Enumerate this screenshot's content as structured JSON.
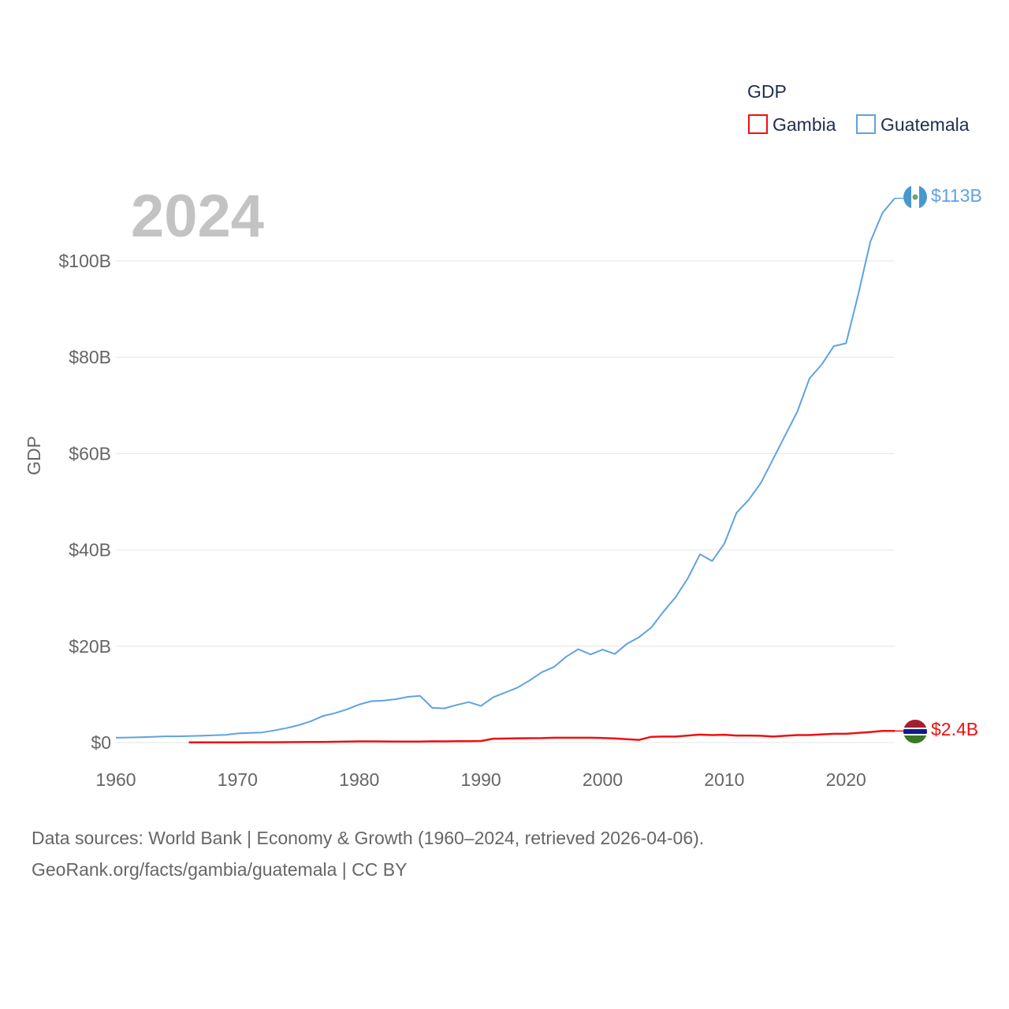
{
  "chart_data": {
    "type": "line",
    "legend_title": "GDP",
    "ylabel": "GDP",
    "year_overlay": "2024",
    "ylim": [
      0,
      113
    ],
    "xlim": [
      1960,
      2024
    ],
    "x_ticks": [
      1960,
      1970,
      1980,
      1990,
      2000,
      2010,
      2020
    ],
    "y_ticks": [
      {
        "value": 0,
        "label": "$0"
      },
      {
        "value": 20,
        "label": "$20B"
      },
      {
        "value": 40,
        "label": "$40B"
      },
      {
        "value": 60,
        "label": "$60B"
      },
      {
        "value": 80,
        "label": "$80B"
      },
      {
        "value": 100,
        "label": "$100B"
      }
    ],
    "series": [
      {
        "name": "Gambia",
        "color": "#ee1111",
        "end_label": "$2.4B",
        "flag": "gambia-flag-icon",
        "x": [
          1966,
          1967,
          1968,
          1969,
          1970,
          1971,
          1972,
          1973,
          1974,
          1975,
          1976,
          1977,
          1978,
          1979,
          1980,
          1981,
          1982,
          1983,
          1984,
          1985,
          1986,
          1987,
          1988,
          1989,
          1990,
          1991,
          1992,
          1993,
          1994,
          1995,
          1996,
          1997,
          1998,
          1999,
          2000,
          2001,
          2002,
          2003,
          2004,
          2005,
          2006,
          2007,
          2008,
          2009,
          2010,
          2011,
          2012,
          2013,
          2014,
          2015,
          2016,
          2017,
          2018,
          2019,
          2020,
          2021,
          2022,
          2023,
          2024
        ],
        "values": [
          0.05,
          0.05,
          0.05,
          0.05,
          0.05,
          0.06,
          0.06,
          0.07,
          0.09,
          0.1,
          0.11,
          0.13,
          0.16,
          0.19,
          0.24,
          0.24,
          0.23,
          0.21,
          0.2,
          0.2,
          0.26,
          0.24,
          0.29,
          0.3,
          0.32,
          0.8,
          0.84,
          0.88,
          0.9,
          0.92,
          1.0,
          1.0,
          1.0,
          1.0,
          0.95,
          0.85,
          0.7,
          0.55,
          1.2,
          1.25,
          1.25,
          1.45,
          1.65,
          1.55,
          1.62,
          1.45,
          1.45,
          1.4,
          1.25,
          1.4,
          1.55,
          1.55,
          1.7,
          1.82,
          1.82,
          2.0,
          2.2,
          2.4,
          2.4
        ]
      },
      {
        "name": "Guatemala",
        "color": "#5fa2e2",
        "end_label": "$113B",
        "flag": "guatemala-flag-icon",
        "x": [
          1960,
          1961,
          1962,
          1963,
          1964,
          1965,
          1966,
          1967,
          1968,
          1969,
          1970,
          1971,
          1972,
          1973,
          1974,
          1975,
          1976,
          1977,
          1978,
          1979,
          1980,
          1981,
          1982,
          1983,
          1984,
          1985,
          1986,
          1987,
          1988,
          1989,
          1990,
          1991,
          1992,
          1993,
          1994,
          1995,
          1996,
          1997,
          1998,
          1999,
          2000,
          2001,
          2002,
          2003,
          2004,
          2005,
          2006,
          2007,
          2008,
          2009,
          2010,
          2011,
          2012,
          2013,
          2014,
          2015,
          2016,
          2017,
          2018,
          2019,
          2020,
          2021,
          2022,
          2023,
          2024
        ],
        "values": [
          1.0,
          1.05,
          1.1,
          1.2,
          1.3,
          1.3,
          1.35,
          1.4,
          1.5,
          1.6,
          1.9,
          2.0,
          2.1,
          2.5,
          3.0,
          3.6,
          4.4,
          5.5,
          6.1,
          6.9,
          7.9,
          8.6,
          8.7,
          9.0,
          9.5,
          9.7,
          7.2,
          7.1,
          7.8,
          8.4,
          7.6,
          9.4,
          10.4,
          11.4,
          12.9,
          14.6,
          15.7,
          17.8,
          19.4,
          18.3,
          19.3,
          18.4,
          20.5,
          21.9,
          23.9,
          27.2,
          30.2,
          34.1,
          39.1,
          37.7,
          41.3,
          47.7,
          50.4,
          53.9,
          58.8,
          63.8,
          68.7,
          75.6,
          78.5,
          82.3,
          82.9,
          93.0,
          104.0,
          110.0,
          113.0
        ]
      }
    ]
  },
  "source": {
    "line1": "Data sources: World Bank | Economy & Growth (1960–2024, retrieved 2026-04-06).",
    "line2": "GeoRank.org/facts/gambia/guatemala | CC BY"
  }
}
